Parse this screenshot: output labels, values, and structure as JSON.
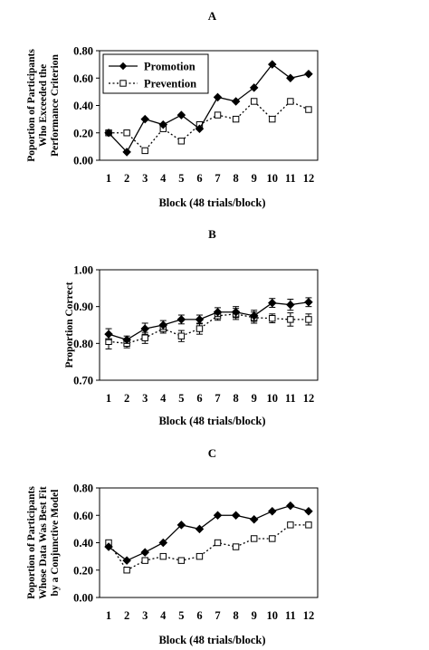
{
  "chart_data": [
    {
      "type": "line",
      "panel_label": "A",
      "categories": [
        "1",
        "2",
        "3",
        "4",
        "5",
        "6",
        "7",
        "8",
        "9",
        "10",
        "11",
        "12"
      ],
      "xlabel": "Block (48 trials/block)",
      "ylabel": [
        "Poportion of Participants",
        "Who Exceeded the",
        "Performance Criterion"
      ],
      "ylim": [
        0,
        0.8
      ],
      "yticks": [
        "0.00",
        "0.20",
        "0.40",
        "0.60",
        "0.80"
      ],
      "legend": {
        "position": "top-left",
        "entries": [
          "Promotion",
          "Prevention"
        ]
      },
      "series": [
        {
          "name": "Promotion",
          "style": "solid",
          "marker": "diamond-filled",
          "values": [
            0.2,
            0.06,
            0.3,
            0.26,
            0.33,
            0.23,
            0.46,
            0.43,
            0.53,
            0.7,
            0.6,
            0.63
          ]
        },
        {
          "name": "Prevention",
          "style": "dotted",
          "marker": "square-open",
          "values": [
            0.2,
            0.2,
            0.07,
            0.23,
            0.14,
            0.26,
            0.33,
            0.3,
            0.43,
            0.3,
            0.43,
            0.37
          ]
        }
      ]
    },
    {
      "type": "line",
      "panel_label": "B",
      "categories": [
        "1",
        "2",
        "3",
        "4",
        "5",
        "6",
        "7",
        "8",
        "9",
        "10",
        "11",
        "12"
      ],
      "xlabel": "Block (48 trials/block)",
      "ylabel": [
        "Proportion Correct"
      ],
      "ylim": [
        0.7,
        1.0
      ],
      "yticks": [
        "0.70",
        "0.80",
        "0.90",
        "1.00"
      ],
      "series": [
        {
          "name": "Promotion",
          "style": "solid",
          "marker": "diamond-filled",
          "values": [
            0.825,
            0.81,
            0.84,
            0.85,
            0.865,
            0.865,
            0.885,
            0.885,
            0.875,
            0.91,
            0.905,
            0.912
          ],
          "errors": [
            0.015,
            0.01,
            0.015,
            0.012,
            0.012,
            0.012,
            0.012,
            0.015,
            0.015,
            0.012,
            0.015,
            0.012
          ]
        },
        {
          "name": "Prevention",
          "style": "dotted",
          "marker": "square-open",
          "values": [
            0.805,
            0.8,
            0.815,
            0.84,
            0.82,
            0.84,
            0.875,
            0.88,
            0.87,
            0.868,
            0.865,
            0.865
          ],
          "errors": [
            0.02,
            0.012,
            0.015,
            0.012,
            0.015,
            0.015,
            0.012,
            0.015,
            0.015,
            0.012,
            0.018,
            0.015
          ]
        }
      ]
    },
    {
      "type": "line",
      "panel_label": "C",
      "categories": [
        "1",
        "2",
        "3",
        "4",
        "5",
        "6",
        "7",
        "8",
        "9",
        "10",
        "11",
        "12"
      ],
      "xlabel": "Block (48 trials/block)",
      "ylabel": [
        "Poportion of Participants",
        "Whose Data Was Best Fit",
        "by a Conjunctive Model"
      ],
      "ylim": [
        0,
        0.8
      ],
      "yticks": [
        "0.00",
        "0.20",
        "0.40",
        "0.60",
        "0.80"
      ],
      "series": [
        {
          "name": "Promotion",
          "style": "solid",
          "marker": "diamond-filled",
          "values": [
            0.37,
            0.27,
            0.33,
            0.4,
            0.53,
            0.5,
            0.6,
            0.6,
            0.57,
            0.63,
            0.67,
            0.63
          ]
        },
        {
          "name": "Prevention",
          "style": "dotted",
          "marker": "square-open",
          "values": [
            0.4,
            0.2,
            0.27,
            0.3,
            0.27,
            0.3,
            0.4,
            0.37,
            0.43,
            0.43,
            0.53,
            0.53
          ]
        }
      ]
    }
  ]
}
